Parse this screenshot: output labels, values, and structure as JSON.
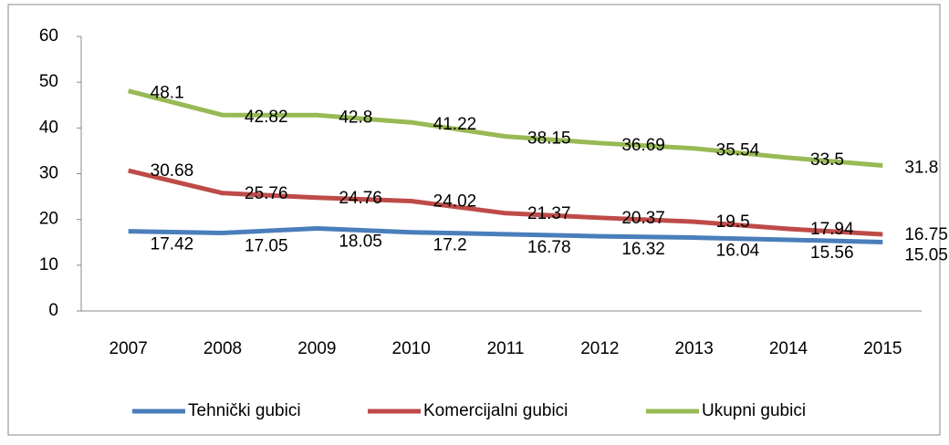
{
  "chart_data": {
    "type": "line",
    "categories": [
      "2007",
      "2008",
      "2009",
      "2010",
      "2011",
      "2012",
      "2013",
      "2014",
      "2015"
    ],
    "series": [
      {
        "name": "Tehnički gubici",
        "color": "#4a7ebb",
        "values": [
          17.42,
          17.05,
          18.05,
          17.2,
          16.78,
          16.32,
          16.04,
          15.56,
          15.05
        ]
      },
      {
        "name": "Komercijalni gubici",
        "color": "#be4b48",
        "values": [
          30.68,
          25.76,
          24.76,
          24.02,
          21.37,
          20.37,
          19.5,
          17.94,
          16.75
        ]
      },
      {
        "name": "Ukupni gubici",
        "color": "#98b954",
        "values": [
          48.1,
          42.82,
          42.8,
          41.22,
          38.15,
          36.69,
          35.54,
          33.5,
          31.8
        ]
      }
    ],
    "ylim": [
      0,
      60
    ],
    "yticks": [
      0,
      10,
      20,
      30,
      40,
      50,
      60
    ],
    "grid": false,
    "legend": "bottom"
  }
}
